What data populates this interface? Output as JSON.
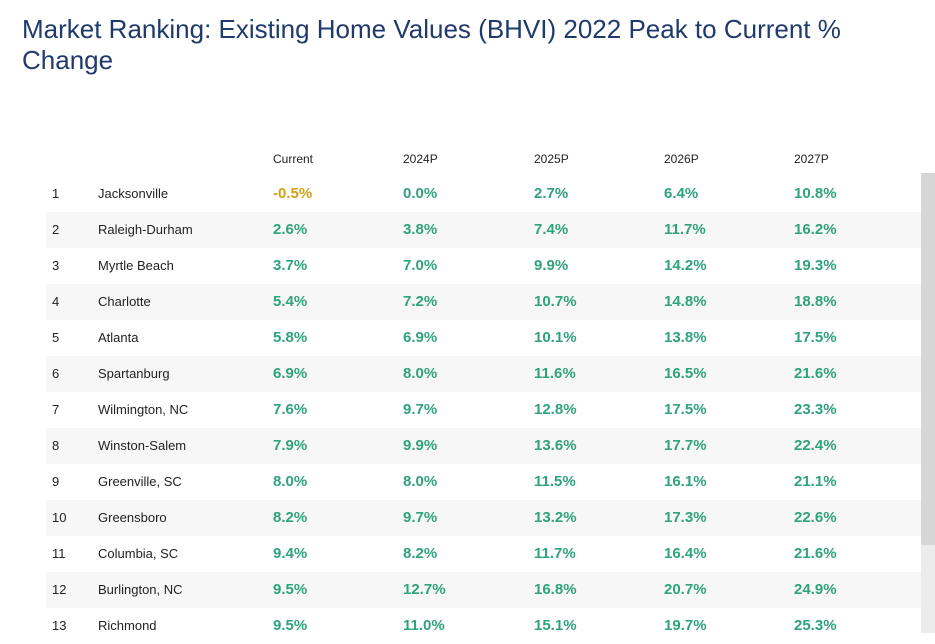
{
  "title": "Market Ranking: Existing Home Values (BHVI) 2022 Peak to Current % Change",
  "colors": {
    "title": "#1f3a6b",
    "positive": "#2fa37a",
    "negative": "#d4a017"
  },
  "table": {
    "headers": [
      "",
      "",
      "Current",
      "2024P",
      "2025P",
      "2026P",
      "2027P"
    ],
    "rows": [
      {
        "rank": "1",
        "market": "Jacksonville",
        "values": [
          "-0.5%",
          "0.0%",
          "2.7%",
          "6.4%",
          "10.8%"
        ]
      },
      {
        "rank": "2",
        "market": "Raleigh-Durham",
        "values": [
          "2.6%",
          "3.8%",
          "7.4%",
          "11.7%",
          "16.2%"
        ]
      },
      {
        "rank": "3",
        "market": "Myrtle Beach",
        "values": [
          "3.7%",
          "7.0%",
          "9.9%",
          "14.2%",
          "19.3%"
        ]
      },
      {
        "rank": "4",
        "market": "Charlotte",
        "values": [
          "5.4%",
          "7.2%",
          "10.7%",
          "14.8%",
          "18.8%"
        ]
      },
      {
        "rank": "5",
        "market": "Atlanta",
        "values": [
          "5.8%",
          "6.9%",
          "10.1%",
          "13.8%",
          "17.5%"
        ]
      },
      {
        "rank": "6",
        "market": "Spartanburg",
        "values": [
          "6.9%",
          "8.0%",
          "11.6%",
          "16.5%",
          "21.6%"
        ]
      },
      {
        "rank": "7",
        "market": "Wilmington, NC",
        "values": [
          "7.6%",
          "9.7%",
          "12.8%",
          "17.5%",
          "23.3%"
        ]
      },
      {
        "rank": "8",
        "market": "Winston-Salem",
        "values": [
          "7.9%",
          "9.9%",
          "13.6%",
          "17.7%",
          "22.4%"
        ]
      },
      {
        "rank": "9",
        "market": "Greenville, SC",
        "values": [
          "8.0%",
          "8.0%",
          "11.5%",
          "16.1%",
          "21.1%"
        ]
      },
      {
        "rank": "10",
        "market": "Greensboro",
        "values": [
          "8.2%",
          "9.7%",
          "13.2%",
          "17.3%",
          "22.6%"
        ]
      },
      {
        "rank": "11",
        "market": "Columbia, SC",
        "values": [
          "9.4%",
          "8.2%",
          "11.7%",
          "16.4%",
          "21.6%"
        ]
      },
      {
        "rank": "12",
        "market": "Burlington, NC",
        "values": [
          "9.5%",
          "12.7%",
          "16.8%",
          "20.7%",
          "24.9%"
        ]
      },
      {
        "rank": "13",
        "market": "Richmond",
        "values": [
          "9.5%",
          "11.0%",
          "15.1%",
          "19.7%",
          "25.3%"
        ]
      }
    ]
  }
}
